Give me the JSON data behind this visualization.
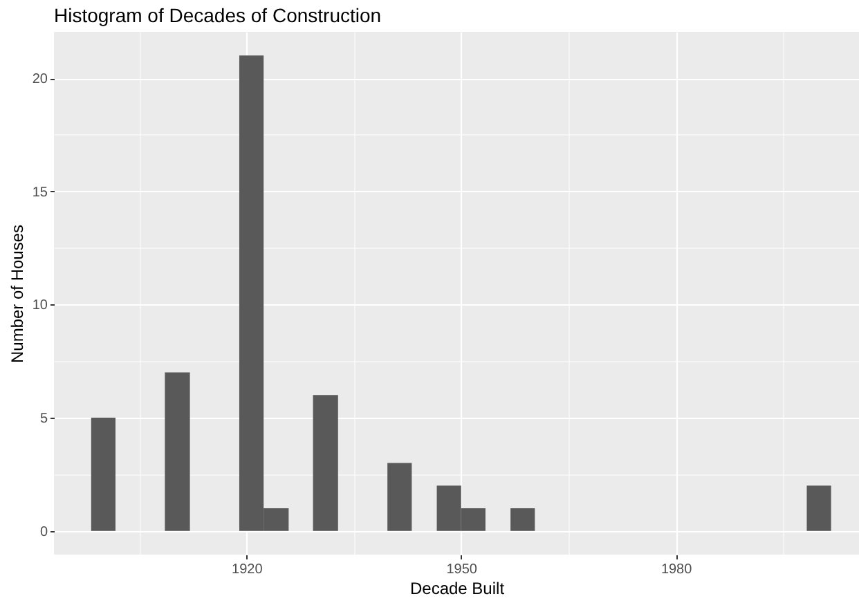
{
  "chart_data": {
    "type": "histogram",
    "title": "Histogram of Decades of Construction",
    "xlabel": "Decade Built",
    "ylabel": "Number of Houses",
    "bins": [
      1898.3,
      1901.7,
      1908.6,
      1912.1,
      1919.0,
      1922.4,
      1925.9,
      1929.3,
      1932.8,
      1939.7,
      1943.1,
      1946.6,
      1950.0,
      1953.4,
      1956.9,
      1960.3,
      1998.3,
      2001.7
    ],
    "values": [
      5,
      0,
      7,
      0,
      21,
      1,
      0,
      6,
      0,
      3,
      0,
      2,
      1,
      0,
      1,
      0,
      2
    ],
    "color": "#595959",
    "xlim": [
      1893.1,
      2005.6
    ],
    "ylim": [
      -1.05,
      22.05
    ],
    "xticks": [
      {
        "value": 1905,
        "label": null
      },
      1920,
      {
        "value": 1935,
        "label": null
      },
      1950,
      {
        "value": 1965,
        "label": null
      },
      1980,
      {
        "value": 1995,
        "label": null
      }
    ],
    "yticks": [
      0,
      {
        "value": 2.5,
        "label": null
      },
      5,
      {
        "value": 7.5,
        "label": null
      },
      10,
      {
        "value": 12.5,
        "label": null
      },
      15,
      {
        "value": 17.5,
        "label": null
      },
      20
    ],
    "grid": true
  }
}
